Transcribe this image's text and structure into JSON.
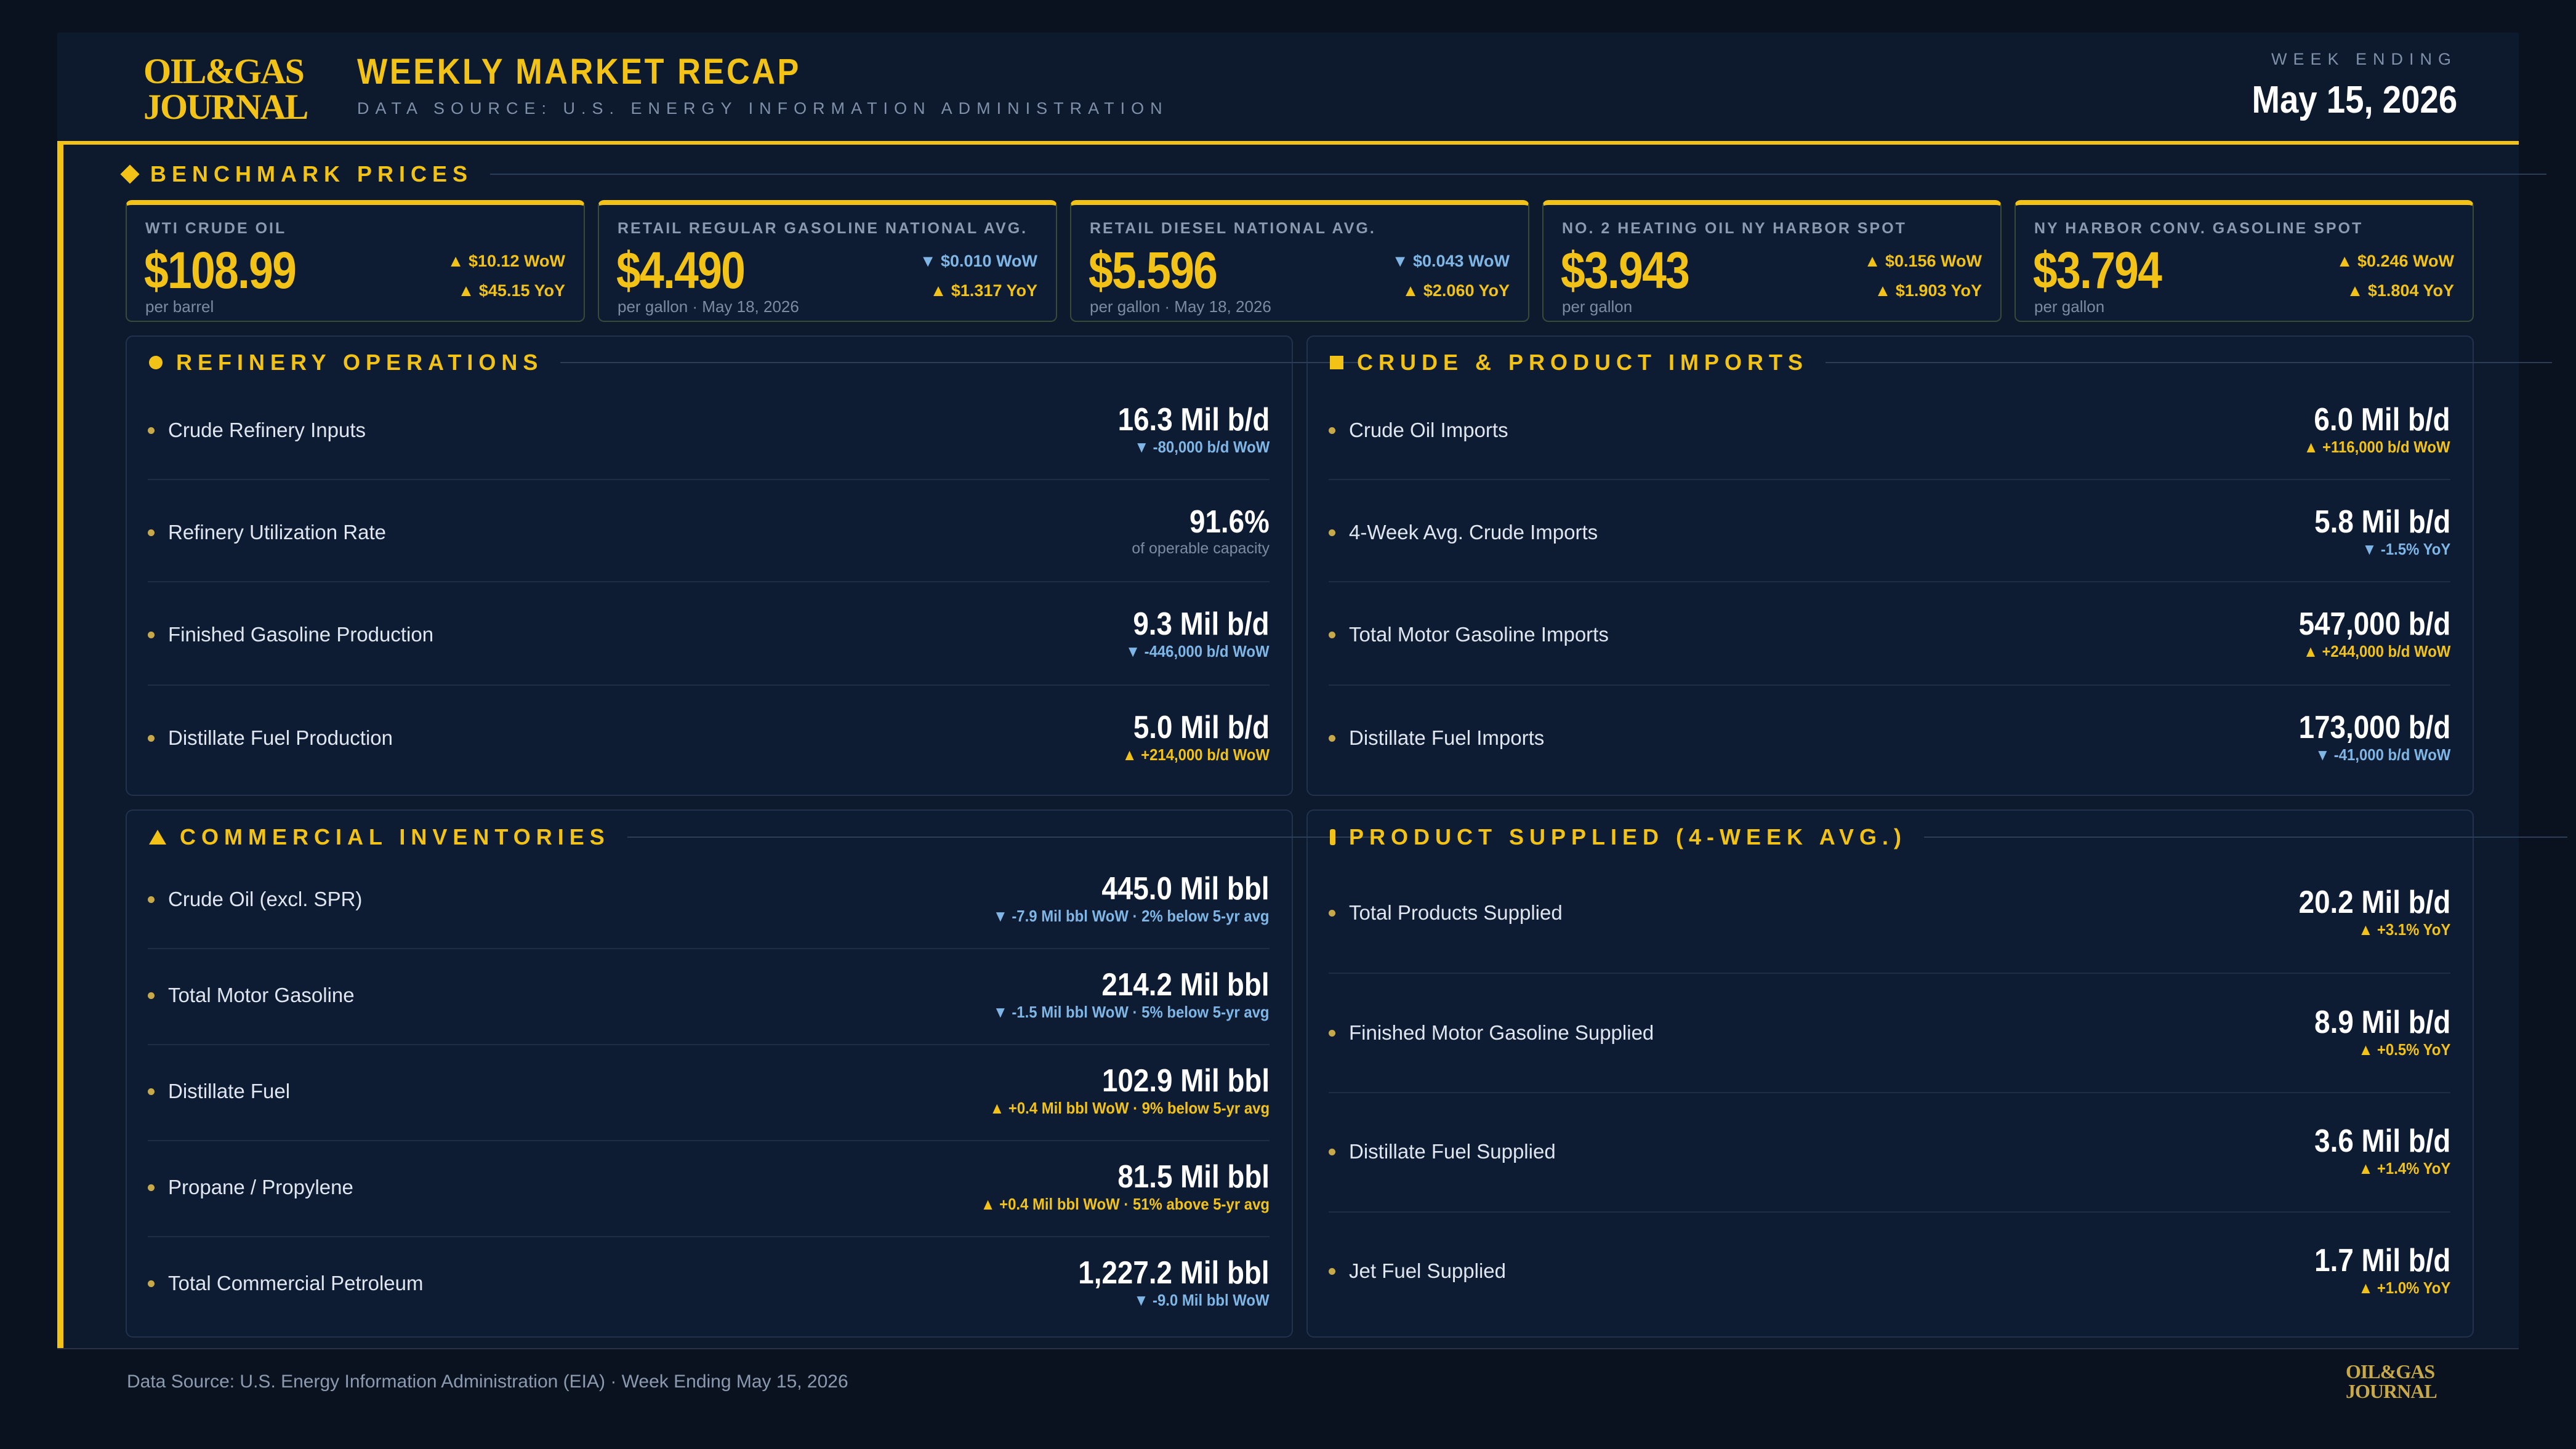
{
  "header": {
    "logo_line1": "OIL&GAS",
    "logo_line2": "JOURNAL",
    "title": "WEEKLY MARKET RECAP",
    "source": "DATA SOURCE: U.S. ENERGY INFORMATION ADMINISTRATION",
    "week_ending_label": "WEEK ENDING",
    "week_ending_date": "May 15, 2026"
  },
  "benchmark": {
    "title": "BENCHMARK PRICES",
    "cards": [
      {
        "label": "WTI CRUDE OIL",
        "value": "$108.99",
        "note": "per barrel",
        "wow": "▲ $10.12 WoW",
        "wow_dir": "up",
        "yoy": "▲ $45.15 YoY",
        "yoy_dir": "up"
      },
      {
        "label": "RETAIL REGULAR GASOLINE NATIONAL AVG.",
        "value": "$4.490",
        "note": "per gallon · May 18, 2026",
        "wow": "▼ $0.010 WoW",
        "wow_dir": "down",
        "yoy": "▲ $1.317 YoY",
        "yoy_dir": "up"
      },
      {
        "label": "RETAIL DIESEL NATIONAL AVG.",
        "value": "$5.596",
        "note": "per gallon · May 18, 2026",
        "wow": "▼ $0.043 WoW",
        "wow_dir": "down",
        "yoy": "▲ $2.060 YoY",
        "yoy_dir": "up"
      },
      {
        "label": "NO. 2 HEATING OIL NY HARBOR SPOT",
        "value": "$3.943",
        "note": "per gallon",
        "wow": "▲ $0.156 WoW",
        "wow_dir": "up",
        "yoy": "▲ $1.903 YoY",
        "yoy_dir": "up"
      },
      {
        "label": "NY HARBOR CONV. GASOLINE SPOT",
        "value": "$3.794",
        "note": "per gallon",
        "wow": "▲ $0.246 WoW",
        "wow_dir": "up",
        "yoy": "▲ $1.804 YoY",
        "yoy_dir": "up"
      }
    ]
  },
  "refinery": {
    "title": "REFINERY OPERATIONS",
    "rows": [
      {
        "label": "Crude Refinery Inputs",
        "value": "16.3 Mil b/d",
        "sub": "▼ -80,000 b/d WoW",
        "sub_dir": "down"
      },
      {
        "label": "Refinery Utilization Rate",
        "value": "91.6%",
        "note": "of operable capacity"
      },
      {
        "label": "Finished Gasoline Production",
        "value": "9.3 Mil b/d",
        "sub": "▼ -446,000 b/d WoW",
        "sub_dir": "down"
      },
      {
        "label": "Distillate Fuel Production",
        "value": "5.0 Mil b/d",
        "sub": "▲ +214,000 b/d WoW",
        "sub_dir": "up"
      }
    ]
  },
  "imports": {
    "title": "CRUDE & PRODUCT IMPORTS",
    "rows": [
      {
        "label": "Crude Oil Imports",
        "value": "6.0 Mil b/d",
        "sub": "▲ +116,000 b/d WoW",
        "sub_dir": "up"
      },
      {
        "label": "4-Week Avg. Crude Imports",
        "value": "5.8 Mil b/d",
        "sub": "▼ -1.5% YoY",
        "sub_dir": "down"
      },
      {
        "label": "Total Motor Gasoline Imports",
        "value": "547,000 b/d",
        "sub": "▲ +244,000 b/d WoW",
        "sub_dir": "up"
      },
      {
        "label": "Distillate Fuel Imports",
        "value": "173,000 b/d",
        "sub": "▼ -41,000 b/d WoW",
        "sub_dir": "down"
      }
    ]
  },
  "inventories": {
    "title": "COMMERCIAL INVENTORIES",
    "rows": [
      {
        "label": "Crude Oil (excl. SPR)",
        "value": "445.0 Mil bbl",
        "sub": "▼ -7.9 Mil bbl WoW · 2% below 5-yr avg",
        "sub_dir": "down"
      },
      {
        "label": "Total Motor Gasoline",
        "value": "214.2 Mil bbl",
        "sub": "▼ -1.5 Mil bbl WoW · 5% below 5-yr avg",
        "sub_dir": "down"
      },
      {
        "label": "Distillate Fuel",
        "value": "102.9 Mil bbl",
        "sub": "▲ +0.4 Mil bbl WoW · 9% below 5-yr avg",
        "sub_dir": "up"
      },
      {
        "label": "Propane / Propylene",
        "value": "81.5 Mil bbl",
        "sub": "▲ +0.4 Mil bbl WoW · 51% above 5-yr avg",
        "sub_dir": "up"
      },
      {
        "label": "Total Commercial Petroleum",
        "value": "1,227.2 Mil bbl",
        "sub": "▼ -9.0 Mil bbl WoW",
        "sub_dir": "down"
      }
    ]
  },
  "supplied": {
    "title": "PRODUCT SUPPLIED (4-WEEK AVG.)",
    "rows": [
      {
        "label": "Total Products Supplied",
        "value": "20.2 Mil b/d",
        "sub": "▲ +3.1% YoY",
        "sub_dir": "up"
      },
      {
        "label": "Finished Motor Gasoline Supplied",
        "value": "8.9 Mil b/d",
        "sub": "▲ +0.5% YoY",
        "sub_dir": "up"
      },
      {
        "label": "Distillate Fuel Supplied",
        "value": "3.6 Mil b/d",
        "sub": "▲ +1.4% YoY",
        "sub_dir": "up"
      },
      {
        "label": "Jet Fuel Supplied",
        "value": "1.7 Mil b/d",
        "sub": "▲ +1.0% YoY",
        "sub_dir": "up"
      }
    ]
  },
  "footer": {
    "text": "Data Source: U.S. Energy Information Administration (EIA)  ·  Week Ending May 15, 2026",
    "logo_line1": "OIL&GAS",
    "logo_line2": "JOURNAL"
  },
  "colors": {
    "accent": "#f2c316",
    "down": "#7fb6e6",
    "background": "#0a1220",
    "panel": "#0e1c33"
  }
}
